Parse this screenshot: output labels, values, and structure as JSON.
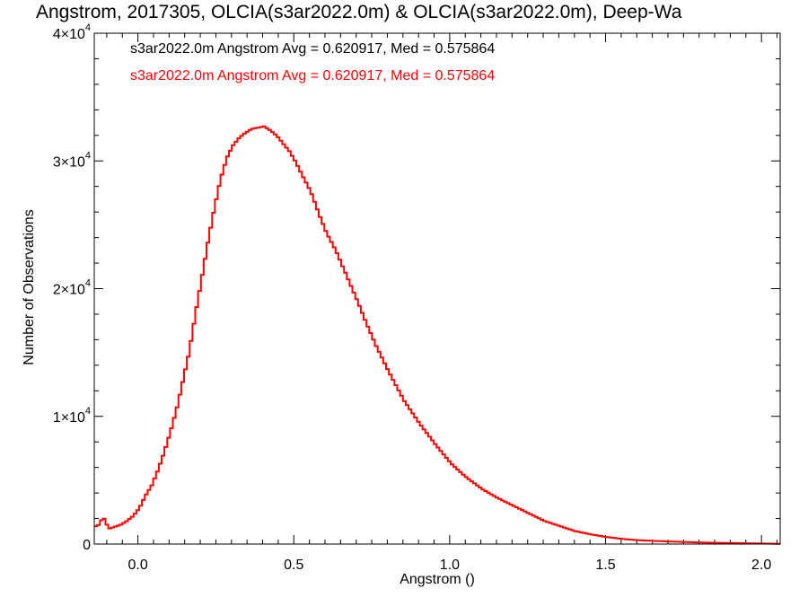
{
  "chart_data": {
    "type": "line",
    "title": "Angstrom, 2017305, OLCIA(s3ar2022.0m) & OLCIA(s3ar2022.0m), Deep-Wa",
    "xlabel": "Angstrom ()",
    "ylabel": "Number of Observations",
    "xlim": [
      -0.14,
      2.06
    ],
    "ylim": [
      0,
      40000
    ],
    "x_ticks": [
      0.0,
      0.5,
      1.0,
      1.5,
      2.0
    ],
    "x_tick_labels": [
      "0.0",
      "0.5",
      "1.0",
      "1.5",
      "2.0"
    ],
    "y_ticks": [
      0,
      10000,
      20000,
      30000,
      40000
    ],
    "y_tick_labels": [
      {
        "mant": "0",
        "exp": ""
      },
      {
        "mant": "1×10",
        "exp": "4"
      },
      {
        "mant": "2×10",
        "exp": "4"
      },
      {
        "mant": "3×10",
        "exp": "4"
      },
      {
        "mant": "4×10",
        "exp": "4"
      }
    ],
    "legend": [
      {
        "text": "s3ar2022.0m Angstrom Avg = 0.620917, Med = 0.575864",
        "color": "#000000"
      },
      {
        "text": "s3ar2022.0m Angstrom Avg = 0.620917, Med = 0.575864",
        "color": "#ff0000"
      }
    ],
    "legend_placement": "top-left",
    "series": [
      {
        "color": "#ff0000",
        "x": [
          -0.14,
          -0.13,
          -0.12,
          -0.11,
          -0.1,
          -0.09,
          -0.08,
          -0.06,
          -0.04,
          -0.02,
          0.0,
          0.02,
          0.04,
          0.06,
          0.08,
          0.1,
          0.12,
          0.14,
          0.16,
          0.18,
          0.2,
          0.22,
          0.24,
          0.26,
          0.28,
          0.3,
          0.32,
          0.34,
          0.36,
          0.38,
          0.4,
          0.42,
          0.44,
          0.46,
          0.48,
          0.5,
          0.52,
          0.55,
          0.58,
          0.6,
          0.63,
          0.66,
          0.7,
          0.73,
          0.76,
          0.8,
          0.85,
          0.9,
          0.95,
          1.0,
          1.05,
          1.1,
          1.15,
          1.2,
          1.25,
          1.3,
          1.35,
          1.4,
          1.45,
          1.5,
          1.55,
          1.6,
          1.7,
          1.8,
          1.9,
          2.0,
          2.06
        ],
        "y": [
          1400,
          1500,
          1950,
          2000,
          1200,
          1250,
          1350,
          1500,
          1800,
          2200,
          2800,
          3800,
          4600,
          5800,
          7200,
          8800,
          10600,
          12800,
          15000,
          18000,
          20800,
          23600,
          26200,
          28500,
          30200,
          31200,
          31800,
          32200,
          32500,
          32600,
          32700,
          32400,
          32000,
          31400,
          30800,
          30000,
          29000,
          27600,
          25600,
          24400,
          23000,
          21300,
          19000,
          17200,
          15500,
          13500,
          11200,
          9400,
          7800,
          6300,
          5200,
          4300,
          3600,
          3000,
          2400,
          1800,
          1400,
          1000,
          750,
          550,
          400,
          300,
          200,
          120,
          80,
          40,
          20
        ]
      }
    ]
  }
}
